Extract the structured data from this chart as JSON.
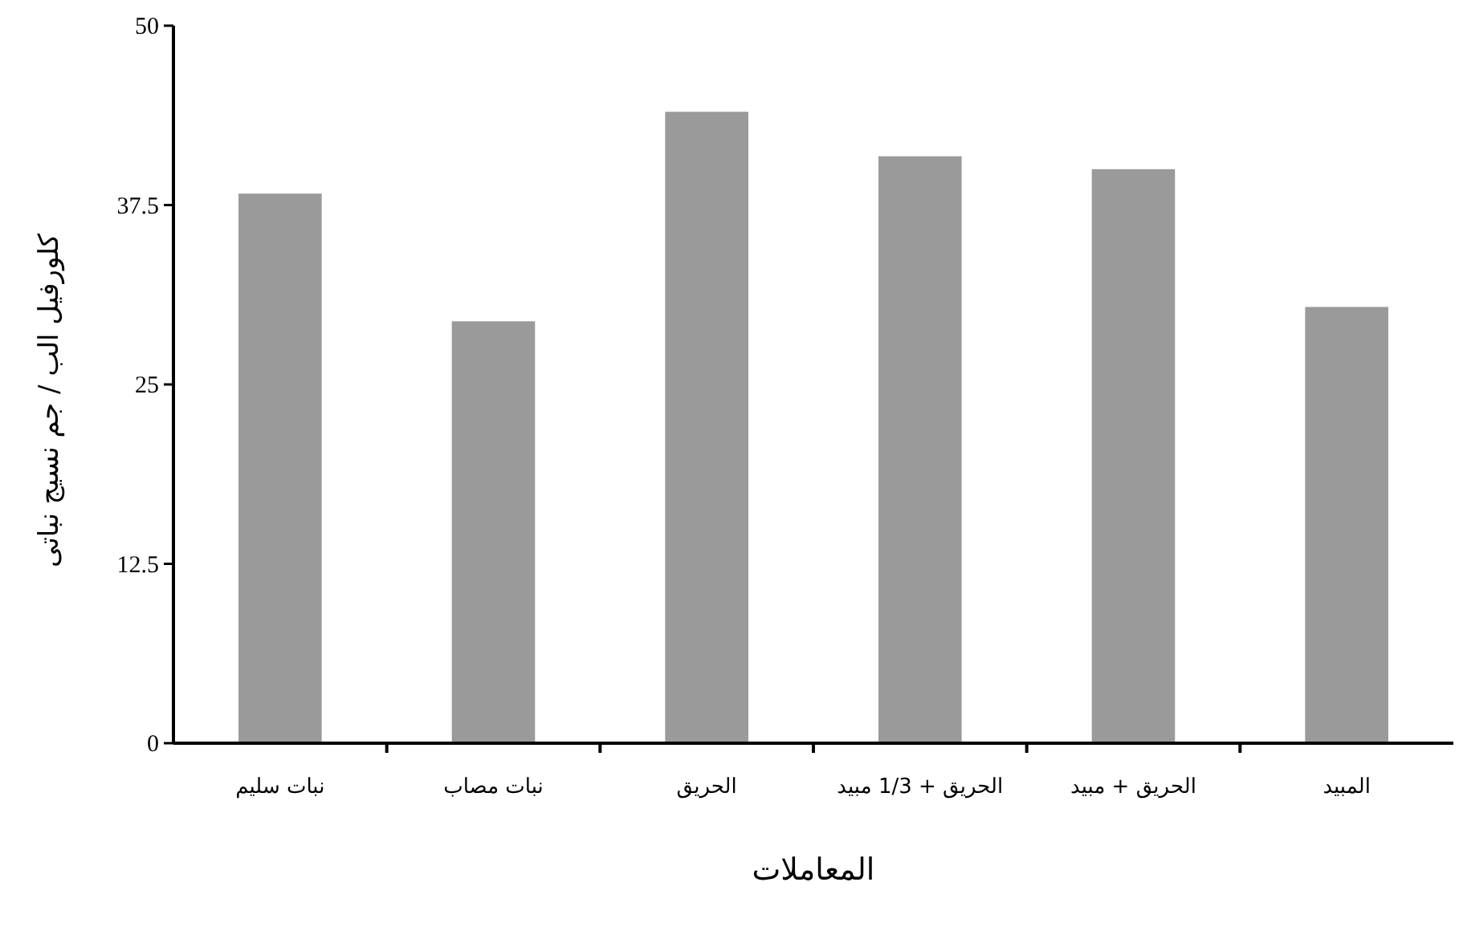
{
  "chart_data": {
    "type": "bar",
    "categories": [
      "نبات سليم",
      "نبات مصاب",
      "الحريق",
      "الحريق + 1/3 مبيد",
      "الحريق + مبيد",
      "المبيد"
    ],
    "values": [
      38.3,
      29.4,
      44.0,
      40.9,
      40.0,
      30.4
    ],
    "color": "#9a9a9a",
    "ylim": [
      0,
      50
    ],
    "yticks": [
      0,
      12.5,
      25,
      37.5,
      50
    ],
    "xlabel": "المعاملات",
    "ylabel": "كلورفيل الب / جم نسيج نباتى"
  }
}
